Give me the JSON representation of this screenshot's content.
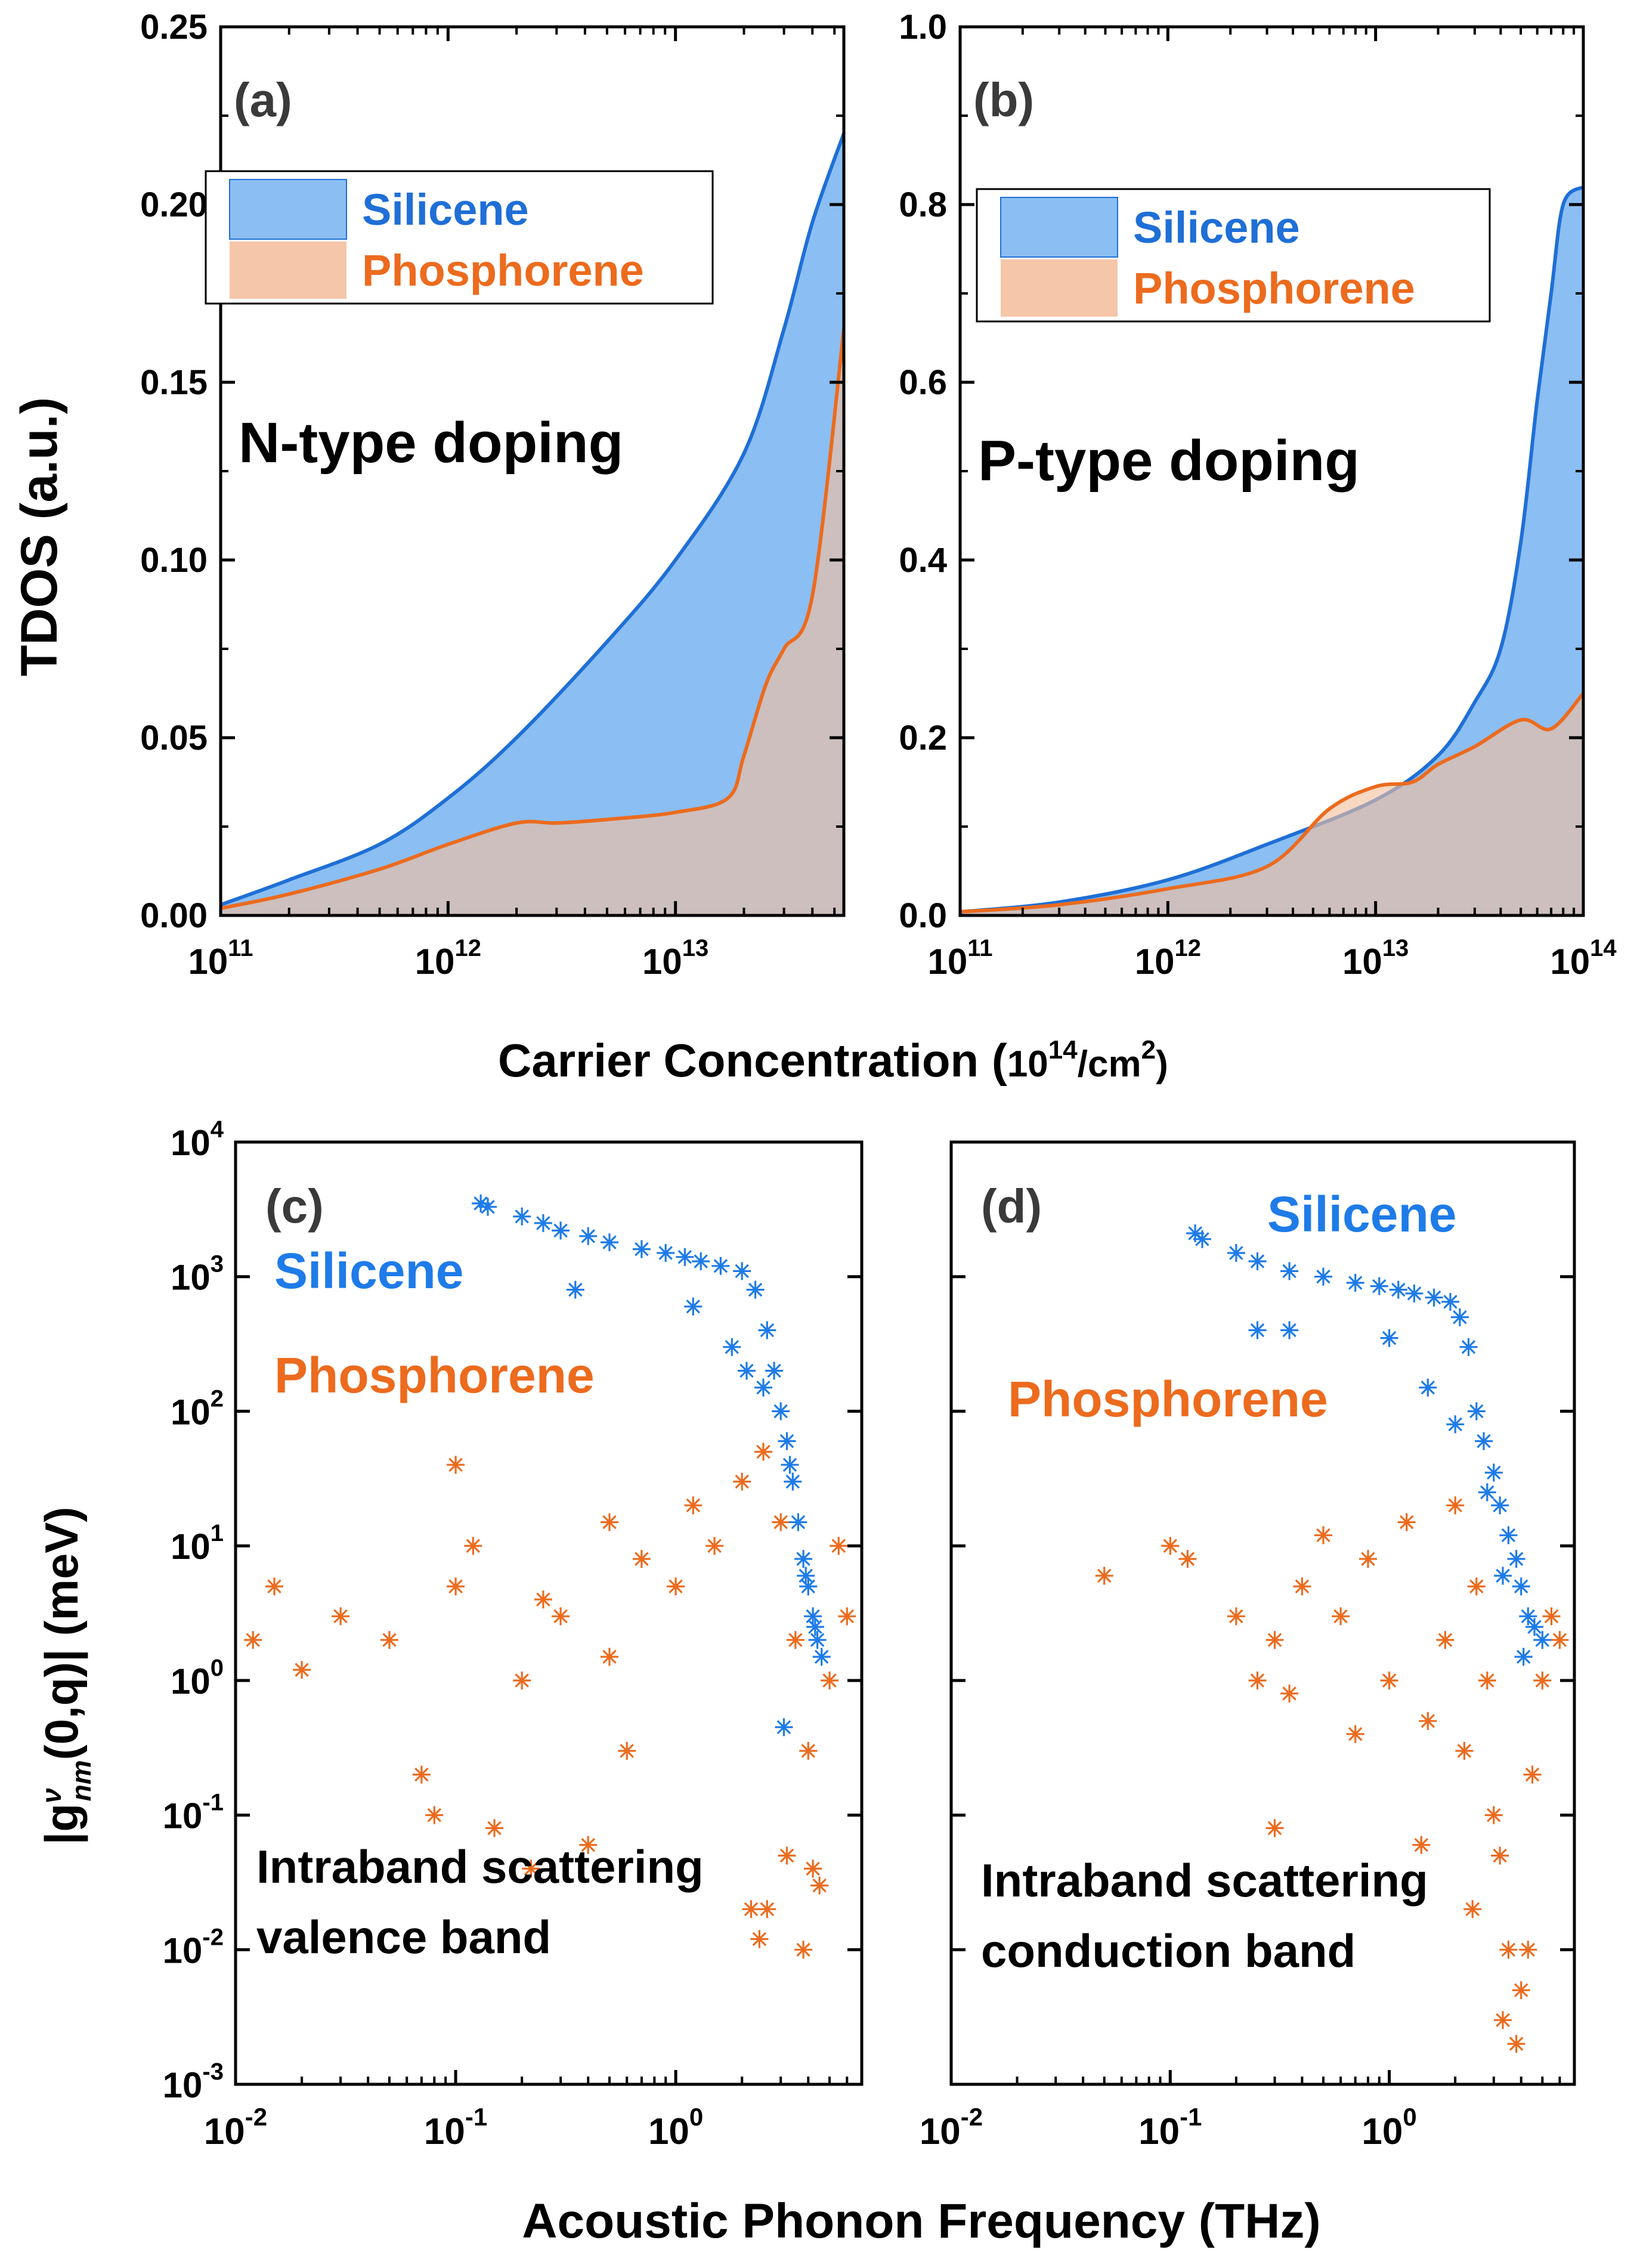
{
  "colors": {
    "silicene_fill": "#8BBEF2",
    "silicene_line": "#1F6FD6",
    "phosphorene_fill": "#F4C09E",
    "phosphorene_line": "#EC6B1E",
    "overlap_fill": "#B09A9A",
    "silicene_marker": "#1E7BE8",
    "phosphorene_marker": "#EC6B1E"
  },
  "shared": {
    "top_xlabel_text": "Carrier Concentration (",
    "top_xlabel_unit": "10",
    "top_xlabel_exp": "14",
    "top_xlabel_tail": "/cm",
    "top_xlabel_exp2": "2",
    "top_xlabel_close": ")",
    "top_ylabel": "TDOS (a.u.)",
    "bottom_xlabel": "Acoustic Phonon Frequency (THz)",
    "bottom_ylabel_pre": "|g",
    "bottom_ylabel_sup": "ν",
    "bottom_ylabel_sub": "nm",
    "bottom_ylabel_post": "(0,q)| (meV)"
  },
  "chart_data": [
    {
      "panel": "(a)",
      "type": "area",
      "annotation": "N-type doping",
      "legend_position": "top-left",
      "legend": [
        "Silicene",
        "Phosphorene"
      ],
      "xscale": "log",
      "xlim": [
        100000000000.0,
        55000000000000.0
      ],
      "ylim": [
        0,
        0.25
      ],
      "xticks": [
        100000000000.0,
        1000000000000.0,
        10000000000000.0
      ],
      "xtick_labels": [
        [
          "10",
          "11"
        ],
        [
          "10",
          "12"
        ],
        [
          "10",
          "13"
        ]
      ],
      "yticks": [
        0,
        0.05,
        0.1,
        0.15,
        0.2,
        0.25
      ],
      "ytick_labels": [
        "0.00",
        "0.05",
        "0.10",
        "0.15",
        "0.20",
        "0.25"
      ],
      "series": [
        {
          "name": "Silicene",
          "x": [
            100000000000.0,
            200000000000.0,
            500000000000.0,
            1000000000000.0,
            2000000000000.0,
            5000000000000.0,
            10000000000000.0,
            20000000000000.0,
            30000000000000.0,
            40000000000000.0,
            55000000000000.0
          ],
          "y": [
            0.003,
            0.01,
            0.02,
            0.033,
            0.05,
            0.077,
            0.1,
            0.13,
            0.165,
            0.195,
            0.22
          ]
        },
        {
          "name": "Phosphorene",
          "x": [
            100000000000.0,
            200000000000.0,
            500000000000.0,
            1000000000000.0,
            2000000000000.0,
            3000000000000.0,
            5000000000000.0,
            10000000000000.0,
            17000000000000.0,
            20000000000000.0,
            25000000000000.0,
            30000000000000.0,
            40000000000000.0,
            55000000000000.0
          ],
          "y": [
            0.002,
            0.006,
            0.013,
            0.02,
            0.026,
            0.026,
            0.027,
            0.029,
            0.033,
            0.045,
            0.065,
            0.075,
            0.09,
            0.165
          ]
        }
      ]
    },
    {
      "panel": "(b)",
      "type": "area",
      "annotation": "P-type doping",
      "legend_position": "top-left",
      "legend": [
        "Silicene",
        "Phosphorene"
      ],
      "xscale": "log",
      "xlim": [
        100000000000.0,
        100000000000000.0
      ],
      "ylim": [
        0,
        1.0
      ],
      "xticks": [
        100000000000.0,
        1000000000000.0,
        10000000000000.0,
        100000000000000.0
      ],
      "xtick_labels": [
        [
          "10",
          "11"
        ],
        [
          "10",
          "12"
        ],
        [
          "10",
          "13"
        ],
        [
          "10",
          "14"
        ]
      ],
      "yticks": [
        0,
        0.2,
        0.4,
        0.6,
        0.8,
        1.0
      ],
      "ytick_labels": [
        "0.0",
        "0.2",
        "0.4",
        "0.6",
        "0.8",
        "1.0"
      ],
      "series": [
        {
          "name": "Silicene",
          "x": [
            100000000000.0,
            300000000000.0,
            1000000000000.0,
            3000000000000.0,
            10000000000000.0,
            20000000000000.0,
            30000000000000.0,
            40000000000000.0,
            50000000000000.0,
            60000000000000.0,
            70000000000000.0,
            80000000000000.0,
            100000000000000.0
          ],
          "y": [
            0.004,
            0.015,
            0.04,
            0.08,
            0.13,
            0.18,
            0.24,
            0.3,
            0.42,
            0.58,
            0.7,
            0.8,
            0.82
          ]
        },
        {
          "name": "Phosphorene",
          "x": [
            100000000000.0,
            300000000000.0,
            1000000000000.0,
            3000000000000.0,
            6000000000000.0,
            10000000000000.0,
            15000000000000.0,
            20000000000000.0,
            30000000000000.0,
            50000000000000.0,
            70000000000000.0,
            100000000000000.0
          ],
          "y": [
            0.004,
            0.012,
            0.03,
            0.055,
            0.12,
            0.145,
            0.15,
            0.17,
            0.19,
            0.22,
            0.21,
            0.25
          ]
        }
      ]
    },
    {
      "panel": "(c)",
      "type": "scatter",
      "xscale": "log",
      "yscale": "log",
      "xlim": [
        0.01,
        7
      ],
      "ylim": [
        0.001,
        10000
      ],
      "xticks": [
        0.01,
        0.1,
        1
      ],
      "xtick_labels": [
        [
          "10",
          "-2"
        ],
        [
          "10",
          "-1"
        ],
        [
          "10",
          "0"
        ]
      ],
      "yticks": [
        0.001,
        0.01,
        0.1,
        1,
        10,
        100,
        1000,
        10000
      ],
      "ytick_labels": [
        [
          "10",
          "-3"
        ],
        [
          "10",
          "-2"
        ],
        [
          "10",
          "-1"
        ],
        [
          "10",
          "0"
        ],
        [
          "10",
          "1"
        ],
        [
          "10",
          "2"
        ],
        [
          "10",
          "3"
        ],
        [
          "10",
          "4"
        ]
      ],
      "series_labels": [
        "Silicene",
        "Phosphorene"
      ],
      "annotation": [
        "Intraband scattering",
        "valence band"
      ],
      "series": [
        {
          "name": "Silicene",
          "marker": "asterisk",
          "x": [
            0.13,
            0.14,
            0.2,
            0.25,
            0.3,
            0.4,
            0.5,
            0.7,
            0.9,
            1.1,
            1.3,
            1.6,
            2.0,
            2.3,
            2.6,
            2.8,
            3.0,
            3.2,
            3.4,
            3.6,
            3.8,
            4.0,
            4.2,
            4.4,
            4.6,
            0.35,
            1.2,
            1.8,
            2.5,
            3.3,
            3.9,
            4.3,
            3.1,
            2.1
          ],
          "y": [
            3500,
            3300,
            2800,
            2500,
            2200,
            2000,
            1800,
            1600,
            1500,
            1400,
            1300,
            1200,
            1100,
            800,
            400,
            200,
            100,
            60,
            30,
            15,
            8,
            5,
            3,
            2,
            1.5,
            800,
            600,
            300,
            150,
            40,
            6,
            2.5,
            0.45,
            200
          ]
        },
        {
          "name": "Phosphorene",
          "marker": "asterisk",
          "x": [
            0.012,
            0.015,
            0.02,
            0.03,
            0.05,
            0.07,
            0.1,
            0.1,
            0.12,
            0.15,
            0.2,
            0.22,
            0.3,
            0.4,
            0.5,
            0.5,
            0.7,
            1.0,
            1.2,
            1.5,
            2.0,
            2.2,
            2.5,
            3.0,
            3.2,
            3.5,
            4.0,
            4.5,
            5.0,
            5.5,
            6.0,
            0.08,
            0.25,
            0.6,
            2.4,
            2.6,
            3.8,
            4.2
          ],
          "y": [
            2,
            5,
            1.2,
            3,
            2,
            0.2,
            40,
            5,
            10,
            0.08,
            1,
            0.04,
            3,
            0.06,
            1.5,
            15,
            8,
            5,
            20,
            10,
            30,
            0.02,
            50,
            15,
            0.05,
            2,
            0.3,
            0.03,
            1,
            10,
            3,
            0.1,
            4,
            0.3,
            0.012,
            0.02,
            0.01,
            0.04
          ]
        }
      ]
    },
    {
      "panel": "(d)",
      "type": "scatter",
      "xscale": "log",
      "yscale": "log",
      "xlim": [
        0.01,
        7
      ],
      "ylim": [
        0.001,
        10000
      ],
      "xticks": [
        0.01,
        0.1,
        1
      ],
      "xtick_labels": [
        [
          "10",
          "-2"
        ],
        [
          "10",
          "-1"
        ],
        [
          "10",
          "0"
        ]
      ],
      "yticks": [
        0.001,
        0.01,
        0.1,
        1,
        10,
        100,
        1000,
        10000
      ],
      "series_labels": [
        "Silicene",
        "Phosphorene"
      ],
      "annotation": [
        "Intraband scattering",
        "conduction band"
      ],
      "series": [
        {
          "name": "Silicene",
          "marker": "asterisk",
          "x": [
            0.13,
            0.14,
            0.2,
            0.25,
            0.35,
            0.5,
            0.7,
            0.9,
            1.1,
            1.3,
            1.6,
            1.9,
            2.1,
            2.3,
            2.5,
            2.7,
            3.0,
            3.2,
            3.5,
            3.8,
            4.0,
            4.3,
            4.6,
            5.0,
            0.25,
            0.35,
            1.0,
            1.5,
            2.0,
            2.8,
            3.3,
            4.1
          ],
          "y": [
            2100,
            1900,
            1500,
            1300,
            1100,
            1000,
            900,
            850,
            800,
            750,
            700,
            650,
            500,
            300,
            100,
            60,
            35,
            20,
            12,
            8,
            5,
            3,
            2.5,
            2,
            400,
            400,
            350,
            150,
            80,
            25,
            6,
            1.5
          ]
        },
        {
          "name": "Phosphorene",
          "marker": "asterisk",
          "x": [
            0.05,
            0.1,
            0.12,
            0.2,
            0.25,
            0.3,
            0.3,
            0.4,
            0.5,
            0.6,
            0.8,
            1.0,
            1.2,
            1.5,
            1.8,
            2.0,
            2.2,
            2.5,
            2.8,
            3.0,
            3.2,
            3.5,
            3.8,
            4.0,
            4.5,
            5.0,
            5.5,
            6.0,
            0.35,
            0.7,
            1.4,
            2.4,
            3.3,
            4.3
          ],
          "y": [
            6,
            10,
            8,
            3,
            1,
            0.08,
            2,
            5,
            12,
            3,
            8,
            1,
            15,
            0.5,
            2,
            20,
            0.3,
            5,
            1,
            0.1,
            0.05,
            0.01,
            0.002,
            0.005,
            0.2,
            1,
            3,
            2,
            0.8,
            0.4,
            0.06,
            0.02,
            0.003,
            0.01
          ]
        }
      ]
    }
  ],
  "panels_text": [
    {
      "letter": "(a)",
      "legend": [
        "Silicene",
        "Phosphorene"
      ],
      "note": "N-type doping"
    },
    {
      "letter": "(b)",
      "legend": [
        "Silicene",
        "Phosphorene"
      ],
      "note": "P-type doping"
    },
    {
      "letter": "(c)",
      "silicene": "Silicene",
      "phosphorene": "Phosphorene",
      "note1": "Intraband scattering",
      "note2": "valence band"
    },
    {
      "letter": "(d)",
      "silicene": "Silicene",
      "phosphorene": "Phosphorene",
      "note1": "Intraband scattering",
      "note2": "conduction band"
    }
  ]
}
